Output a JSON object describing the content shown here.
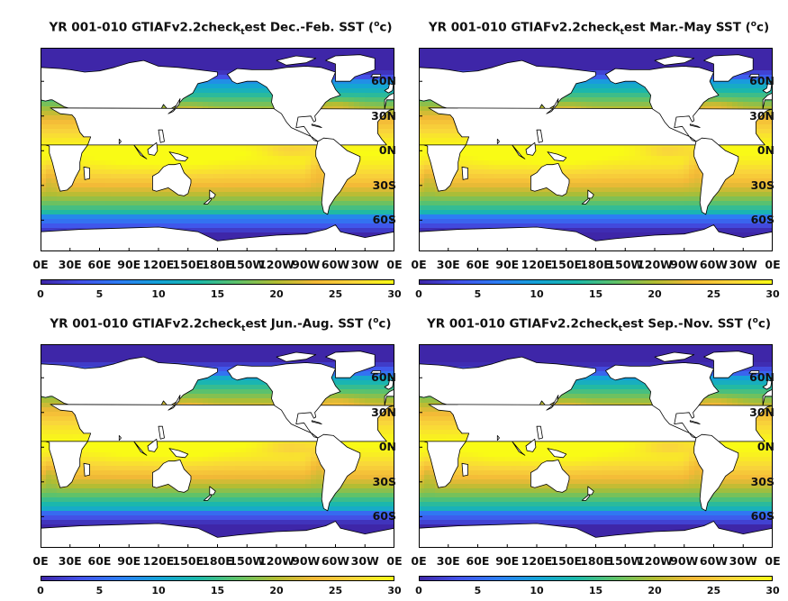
{
  "colormap": [
    "#3e26a8",
    "#4352ea",
    "#2d7df4",
    "#14a3d7",
    "#1bb8aa",
    "#5ec26a",
    "#b1bd33",
    "#f3b937",
    "#f9d63b",
    "#f9fb15"
  ],
  "map_colors": {
    "land": "#ffffff",
    "coast": "#000000",
    "frame": "#000000"
  },
  "panels": [
    {
      "season": "Dec.-Feb.",
      "title": {
        "prefix": "YR 001-010 GTIAFv2.2check",
        "sub": "t",
        "mid": "est Dec.-Feb. SST (",
        "sup": "o",
        "suffix": "c)"
      }
    },
    {
      "season": "Mar.-May",
      "title": {
        "prefix": "YR 001-010 GTIAFv2.2check",
        "sub": "t",
        "mid": "est Mar.-May SST (",
        "sup": "o",
        "suffix": "c)"
      }
    },
    {
      "season": "Jun.-Aug.",
      "title": {
        "prefix": "YR 001-010 GTIAFv2.2check",
        "sub": "t",
        "mid": "est Jun.-Aug. SST (",
        "sup": "o",
        "suffix": "c)"
      }
    },
    {
      "season": "Sep.-Nov.",
      "title": {
        "prefix": "YR 001-010 GTIAFv2.2check",
        "sub": "t",
        "mid": "est Sep.-Nov. SST (",
        "sup": "o",
        "suffix": "c)"
      }
    }
  ],
  "lat_ticks": [
    {
      "label": "60N",
      "lat": 60
    },
    {
      "label": "30N",
      "lat": 30
    },
    {
      "label": "0N",
      "lat": 0
    },
    {
      "label": "30S",
      "lat": -30
    },
    {
      "label": "60S",
      "lat": -60
    }
  ],
  "lon_ticks": [
    {
      "label": "0E",
      "lon": 0
    },
    {
      "label": "30E",
      "lon": 30
    },
    {
      "label": "60E",
      "lon": 60
    },
    {
      "label": "90E",
      "lon": 90
    },
    {
      "label": "120E",
      "lon": 120
    },
    {
      "label": "150E",
      "lon": 150
    },
    {
      "label": "180E",
      "lon": 180
    },
    {
      "label": "150W",
      "lon": 210
    },
    {
      "label": "120W",
      "lon": 240
    },
    {
      "label": "90W",
      "lon": 270
    },
    {
      "label": "60W",
      "lon": 300
    },
    {
      "label": "30W",
      "lon": 330
    },
    {
      "label": "0E",
      "lon": 360
    }
  ],
  "colorbar": {
    "min": 0,
    "max": 30,
    "ticks": [
      {
        "label": "0",
        "value": 0
      },
      {
        "label": "5",
        "value": 5
      },
      {
        "label": "10",
        "value": 10
      },
      {
        "label": "15",
        "value": 15
      },
      {
        "label": "20",
        "value": 20
      },
      {
        "label": "25",
        "value": 25
      },
      {
        "label": "30",
        "value": 30
      }
    ]
  }
}
